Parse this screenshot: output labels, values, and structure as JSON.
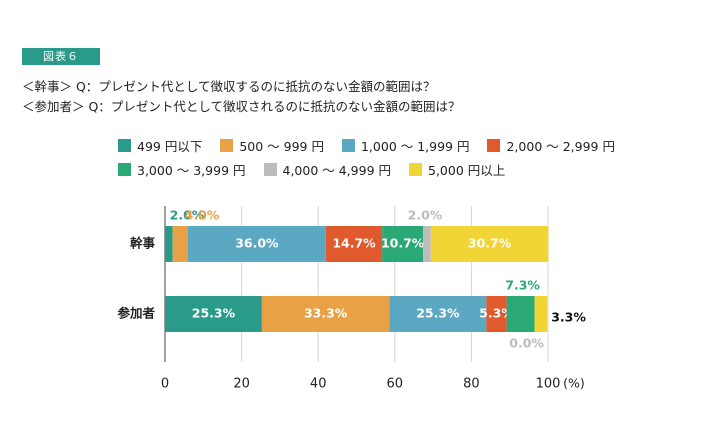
{
  "figure_tag": "図表６",
  "questions": {
    "q1": "＜幹事＞ Q：プレゼント代として徴収するのに抵抗のない金額の範囲は？",
    "q2": "＜参加者＞ Q：プレゼント代として徴収されるのに抵抗のない金額の範囲は？"
  },
  "chart_data": {
    "type": "bar",
    "orientation": "horizontal",
    "stacked": true,
    "categories": [
      "幹事",
      "参加者"
    ],
    "series": [
      {
        "name": "499 円以下",
        "color": "#2a9b8a",
        "values": [
          2.0,
          25.3
        ]
      },
      {
        "name": "500 ～ 999 円",
        "color": "#e8a245",
        "values": [
          4.0,
          33.3
        ]
      },
      {
        "name": "1,000 ～ 1,999 円",
        "color": "#5ba8c2",
        "values": [
          36.0,
          25.3
        ]
      },
      {
        "name": "2,000 ～ 2,999 円",
        "color": "#e05a2e",
        "values": [
          14.7,
          5.3
        ]
      },
      {
        "name": "3,000 ～ 3,999 円",
        "color": "#2aa876",
        "values": [
          10.7,
          7.3
        ]
      },
      {
        "name": "4,000 ～ 4,999 円",
        "color": "#bcbcbc",
        "values": [
          2.0,
          0.0
        ]
      },
      {
        "name": "5,000 円以上",
        "color": "#f0d535",
        "values": [
          30.7,
          3.3
        ]
      }
    ],
    "data_labels": [
      [
        "2.0%",
        "4.0%",
        "36.0%",
        "14.7%",
        "10.7%",
        "2.0%",
        "30.7%"
      ],
      [
        "25.3%",
        "33.3%",
        "25.3%",
        "5.3%",
        "7.3%",
        "0.0%",
        "3.3%"
      ]
    ],
    "xlim": [
      0,
      100
    ],
    "xticks": [
      "0",
      "20",
      "40",
      "60",
      "80",
      "100"
    ],
    "x_unit": "(%)",
    "grid": true
  }
}
